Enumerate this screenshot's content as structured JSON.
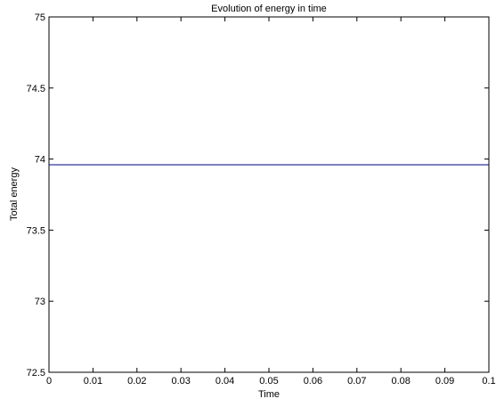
{
  "chart_data": {
    "type": "line",
    "title": "Evolution of energy in time",
    "xlabel": "Time",
    "ylabel": "Total energy",
    "xlim": [
      0,
      0.1
    ],
    "ylim": [
      72.5,
      75
    ],
    "xticks": [
      0,
      0.01,
      0.02,
      0.03,
      0.04,
      0.05,
      0.06,
      0.07,
      0.08,
      0.09,
      0.1
    ],
    "xtick_labels": [
      "0",
      "0.01",
      "0.02",
      "0.03",
      "0.04",
      "0.05",
      "0.06",
      "0.07",
      "0.08",
      "0.09",
      "0.1"
    ],
    "yticks": [
      72.5,
      73,
      73.5,
      74,
      74.5,
      75
    ],
    "ytick_labels": [
      "72.5",
      "73",
      "73.5",
      "74",
      "74.5",
      "75"
    ],
    "grid": false,
    "series": [
      {
        "x": [
          0,
          0.1
        ],
        "y": [
          73.96,
          73.96
        ],
        "color": "#000080"
      }
    ]
  }
}
